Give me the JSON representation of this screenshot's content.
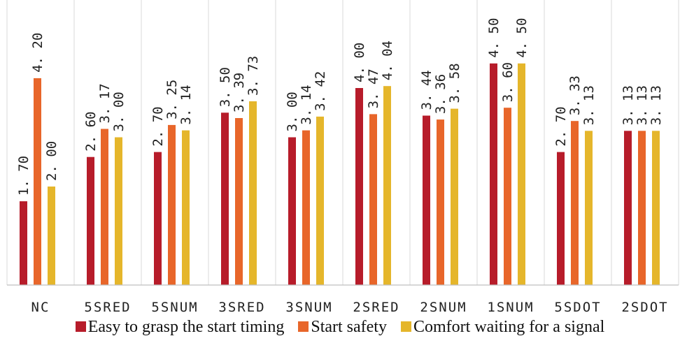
{
  "chart_data": {
    "type": "bar",
    "categories": [
      "NC",
      "5SRED",
      "5SNUM",
      "3SRED",
      "3SNUM",
      "2SRED",
      "2SNUM",
      "1SNUM",
      "5SDOT",
      "2SDOT"
    ],
    "series": [
      {
        "name": "Easy to grasp the start timing",
        "color": "#b71c2a",
        "values": [
          1.7,
          2.6,
          2.7,
          3.5,
          3.0,
          4.0,
          3.44,
          4.5,
          2.7,
          3.13
        ],
        "labels": [
          "1. 70",
          "2. 60",
          "2. 70",
          "3. 50",
          "3. 00",
          "4. 00",
          "3. 44",
          "4. 50",
          "2. 70",
          "3. 13"
        ]
      },
      {
        "name": "Start safety",
        "color": "#e8662a",
        "values": [
          4.2,
          3.17,
          3.25,
          3.39,
          3.14,
          3.47,
          3.36,
          3.6,
          3.33,
          3.13
        ],
        "labels": [
          "4. 20",
          "3. 17",
          "3. 25",
          "3. 39",
          "3. 14",
          "3. 47",
          "3. 36",
          "3. 60",
          "3. 33",
          "3. 13"
        ]
      },
      {
        "name": "Comfort waiting for a signal",
        "color": "#e5b62b",
        "values": [
          2.0,
          3.0,
          3.14,
          3.73,
          3.42,
          4.04,
          3.58,
          4.5,
          3.13,
          3.13
        ],
        "labels": [
          "2. 00",
          "3. 00",
          "3. 14",
          "3. 73",
          "3. 42",
          "4. 04",
          "3. 58",
          "4. 50",
          "3. 13",
          "3. 13"
        ]
      }
    ],
    "ylim": [
      0,
      5
    ],
    "grid": "vertical category separators",
    "legend_position": "bottom"
  }
}
